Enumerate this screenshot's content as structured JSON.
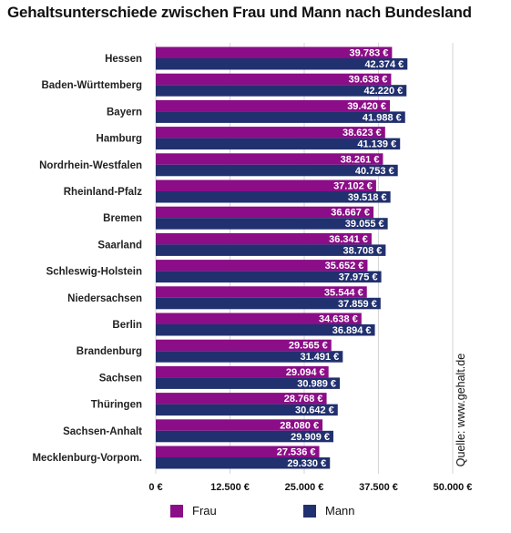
{
  "colors": {
    "frau": "#8b0d87",
    "mann": "#21306e"
  },
  "chart_data": {
    "type": "bar",
    "orientation": "horizontal",
    "title": "Gehaltsunterschiede zwischen Frau und Mann nach Bundesland",
    "categories": [
      "Hessen",
      "Baden-Württemberg",
      "Bayern",
      "Hamburg",
      "Nordrhein-Westfalen",
      "Rheinland-Pfalz",
      "Bremen",
      "Saarland",
      "Schleswig-Holstein",
      "Niedersachsen",
      "Berlin",
      "Brandenburg",
      "Sachsen",
      "Thüringen",
      "Sachsen-Anhalt",
      "Mecklenburg-Vorpom."
    ],
    "series": [
      {
        "name": "Frau",
        "values": [
          39783,
          39638,
          39420,
          38623,
          38261,
          37102,
          36667,
          36341,
          35652,
          35544,
          34638,
          29565,
          29094,
          28768,
          28080,
          27536
        ],
        "labels": [
          "39.783 €",
          "39.638 €",
          "39.420 €",
          "38.623 €",
          "38.261 €",
          "37.102 €",
          "36.667 €",
          "36.341 €",
          "35.652 €",
          "35.544 €",
          "34.638 €",
          "29.565 €",
          "29.094 €",
          "28.768 €",
          "28.080 €",
          "27.536 €"
        ]
      },
      {
        "name": "Mann",
        "values": [
          42374,
          42220,
          41988,
          41139,
          40753,
          39518,
          39055,
          38708,
          37975,
          37859,
          36894,
          31491,
          30989,
          30642,
          29909,
          29330
        ],
        "labels": [
          "42.374 €",
          "42.220 €",
          "41.988 €",
          "41.139 €",
          "40.753 €",
          "39.518 €",
          "39.055 €",
          "38.708 €",
          "37.975 €",
          "37.859 €",
          "36.894 €",
          "31.491 €",
          "30.989 €",
          "30.642 €",
          "29.909 €",
          "29.330 €"
        ]
      }
    ],
    "xlim": [
      0,
      50000
    ],
    "x_ticks": [
      0,
      12500,
      25000,
      37500,
      50000
    ],
    "x_tick_labels": [
      "0 €",
      "12.500 €",
      "25.000 €",
      "37.500 €",
      "50.000 €"
    ],
    "grid": true,
    "legend_position": "bottom-left",
    "source": "Quelle: www.gehalt.de"
  }
}
